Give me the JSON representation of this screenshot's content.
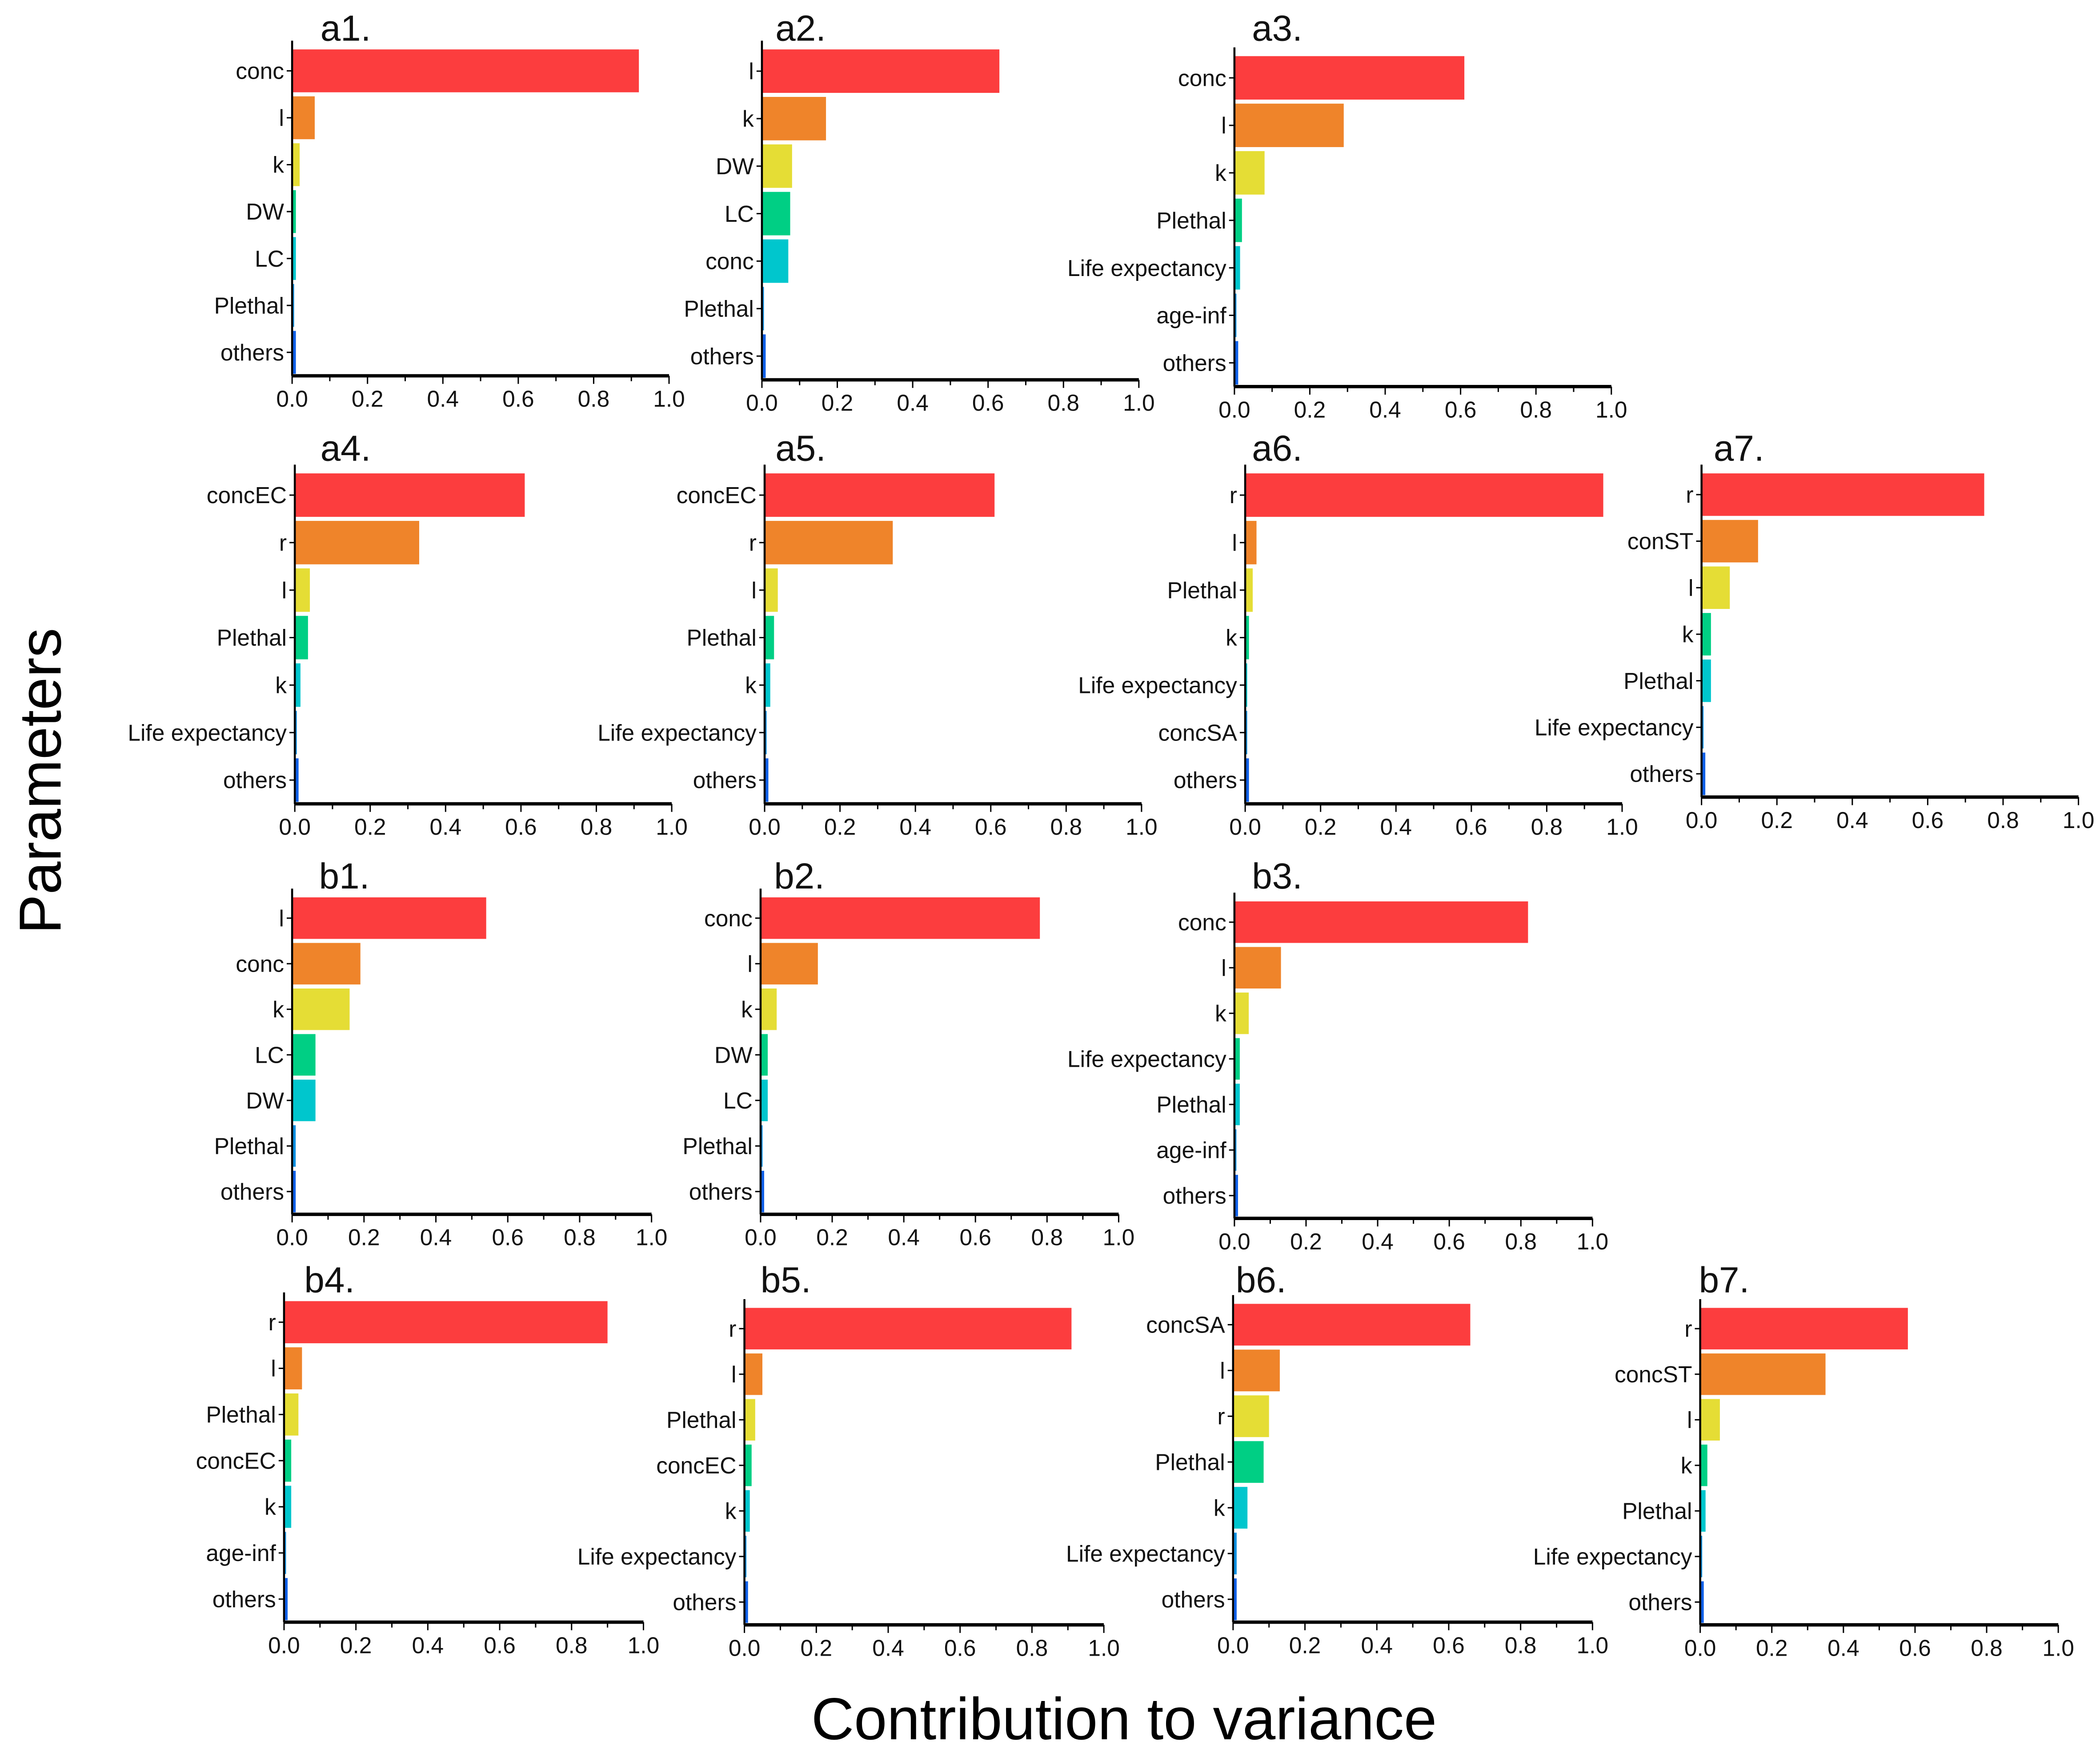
{
  "colors": [
    "#fc3d3e",
    "#ef842a",
    "#e5dd35",
    "#00cf84",
    "#00c6cd",
    "#0e8fe0",
    "#1060e8"
  ],
  "ylabel": "Parameters",
  "xlabel": "Contribution to variance",
  "chart_data": [
    {
      "type": "bar",
      "orientation": "horizontal",
      "title": "a1.",
      "categories": [
        "conc",
        "l",
        "k",
        "DW",
        "LC",
        "Plethal",
        "others"
      ],
      "values": [
        0.92,
        0.06,
        0.02,
        0.01,
        0.01,
        0.003,
        0.01
      ],
      "xlim": [
        0,
        1
      ],
      "xticks": [
        "0.0",
        "0.2",
        "0.4",
        "0.6",
        "0.8",
        "1.0"
      ]
    },
    {
      "type": "bar",
      "orientation": "horizontal",
      "title": "a2.",
      "categories": [
        "l",
        "k",
        "DW",
        "LC",
        "conc",
        "Plethal",
        "others"
      ],
      "values": [
        0.63,
        0.17,
        0.08,
        0.075,
        0.07,
        0.005,
        0.01
      ],
      "xlim": [
        0,
        1
      ],
      "xticks": [
        "0.0",
        "0.2",
        "0.4",
        "0.6",
        "0.8",
        "1.0"
      ]
    },
    {
      "type": "bar",
      "orientation": "horizontal",
      "title": "a3.",
      "categories": [
        "conc",
        "l",
        "k",
        "Plethal",
        "Life expectancy",
        "age-inf",
        "others"
      ],
      "values": [
        0.61,
        0.29,
        0.08,
        0.02,
        0.015,
        0.005,
        0.01
      ],
      "xlim": [
        0,
        1
      ],
      "xticks": [
        "0.0",
        "0.2",
        "0.4",
        "0.6",
        "0.8",
        "1.0"
      ]
    },
    {
      "type": "bar",
      "orientation": "horizontal",
      "title": "a4.",
      "categories": [
        "concEC",
        "r",
        "l",
        "Plethal",
        "k",
        "Life expectancy",
        "others"
      ],
      "values": [
        0.61,
        0.33,
        0.04,
        0.035,
        0.015,
        0.005,
        0.01
      ],
      "xlim": [
        0,
        1
      ],
      "xticks": [
        "0.0",
        "0.2",
        "0.4",
        "0.6",
        "0.8",
        "1.0"
      ]
    },
    {
      "type": "bar",
      "orientation": "horizontal",
      "title": "a5.",
      "categories": [
        "concEC",
        "r",
        "l",
        "Plethal",
        "k",
        "Life expectancy",
        "others"
      ],
      "values": [
        0.61,
        0.34,
        0.035,
        0.025,
        0.015,
        0.005,
        0.01
      ],
      "xlim": [
        0,
        1
      ],
      "xticks": [
        "0.0",
        "0.2",
        "0.4",
        "0.6",
        "0.8",
        "1.0"
      ]
    },
    {
      "type": "bar",
      "orientation": "horizontal",
      "title": "a6.",
      "categories": [
        "r",
        "l",
        "Plethal",
        "k",
        "Life expectancy",
        "concSA",
        "others"
      ],
      "values": [
        0.95,
        0.03,
        0.02,
        0.01,
        0.005,
        0.005,
        0.01
      ],
      "xlim": [
        0,
        1
      ],
      "xticks": [
        "0.0",
        "0.2",
        "0.4",
        "0.6",
        "0.8",
        "1.0"
      ]
    },
    {
      "type": "bar",
      "orientation": "horizontal",
      "title": "a7.",
      "categories": [
        "r",
        "conST",
        "l",
        "k",
        "Plethal",
        "Life expectancy",
        "others"
      ],
      "values": [
        0.75,
        0.15,
        0.075,
        0.025,
        0.025,
        0.005,
        0.01
      ],
      "xlim": [
        0,
        1
      ],
      "xticks": [
        "0.0",
        "0.2",
        "0.4",
        "0.6",
        "0.8",
        "1.0"
      ]
    },
    {
      "type": "bar",
      "orientation": "horizontal",
      "title": "b1.",
      "categories": [
        "l",
        "conc",
        "k",
        "LC",
        "DW",
        "Plethal",
        "others"
      ],
      "values": [
        0.54,
        0.19,
        0.16,
        0.065,
        0.065,
        0.01,
        0.01
      ],
      "xlim": [
        0,
        1
      ],
      "xticks": [
        "0.0",
        "0.2",
        "0.4",
        "0.6",
        "0.8",
        "1.0"
      ]
    },
    {
      "type": "bar",
      "orientation": "horizontal",
      "title": "b2.",
      "categories": [
        "conc",
        "l",
        "k",
        "DW",
        "LC",
        "Plethal",
        "others"
      ],
      "values": [
        0.78,
        0.16,
        0.045,
        0.02,
        0.02,
        0.005,
        0.01
      ],
      "xlim": [
        0,
        1
      ],
      "xticks": [
        "0.0",
        "0.2",
        "0.4",
        "0.6",
        "0.8",
        "1.0"
      ]
    },
    {
      "type": "bar",
      "orientation": "horizontal",
      "title": "b3.",
      "categories": [
        "conc",
        "l",
        "k",
        "Life expectancy",
        "Plethal",
        "age-inf",
        "others"
      ],
      "values": [
        0.82,
        0.13,
        0.04,
        0.015,
        0.015,
        0.005,
        0.01
      ],
      "xlim": [
        0,
        1
      ],
      "xticks": [
        "0.0",
        "0.2",
        "0.4",
        "0.6",
        "0.8",
        "1.0"
      ]
    },
    {
      "type": "bar",
      "orientation": "horizontal",
      "title": "b4.",
      "categories": [
        "r",
        "l",
        "Plethal",
        "concEC",
        "k",
        "age-inf",
        "others"
      ],
      "values": [
        0.9,
        0.05,
        0.04,
        0.02,
        0.02,
        0.005,
        0.01
      ],
      "xlim": [
        0,
        1
      ],
      "xticks": [
        "0.0",
        "0.2",
        "0.4",
        "0.6",
        "0.8",
        "1.0"
      ]
    },
    {
      "type": "bar",
      "orientation": "horizontal",
      "title": "b5.",
      "categories": [
        "r",
        "l",
        "Plethal",
        "concEC",
        "k",
        "Life expectancy",
        "others"
      ],
      "values": [
        0.91,
        0.05,
        0.03,
        0.02,
        0.015,
        0.005,
        0.01
      ],
      "xlim": [
        0,
        1
      ],
      "xticks": [
        "0.0",
        "0.2",
        "0.4",
        "0.6",
        "0.8",
        "1.0"
      ]
    },
    {
      "type": "bar",
      "orientation": "horizontal",
      "title": "b6.",
      "categories": [
        "concSA",
        "l",
        "r",
        "Plethal",
        "k",
        "Life expectancy",
        "others"
      ],
      "values": [
        0.66,
        0.13,
        0.1,
        0.085,
        0.04,
        0.01,
        0.01
      ],
      "xlim": [
        0,
        1
      ],
      "xticks": [
        "0.0",
        "0.2",
        "0.4",
        "0.6",
        "0.8",
        "1.0"
      ]
    },
    {
      "type": "bar",
      "orientation": "horizontal",
      "title": "b7.",
      "categories": [
        "r",
        "concST",
        "l",
        "k",
        "Plethal",
        "Life expectancy",
        "others"
      ],
      "values": [
        0.58,
        0.35,
        0.055,
        0.02,
        0.015,
        0.005,
        0.01
      ],
      "xlim": [
        0,
        1
      ],
      "xticks": [
        "0.0",
        "0.2",
        "0.4",
        "0.6",
        "0.8",
        "1.0"
      ]
    }
  ]
}
